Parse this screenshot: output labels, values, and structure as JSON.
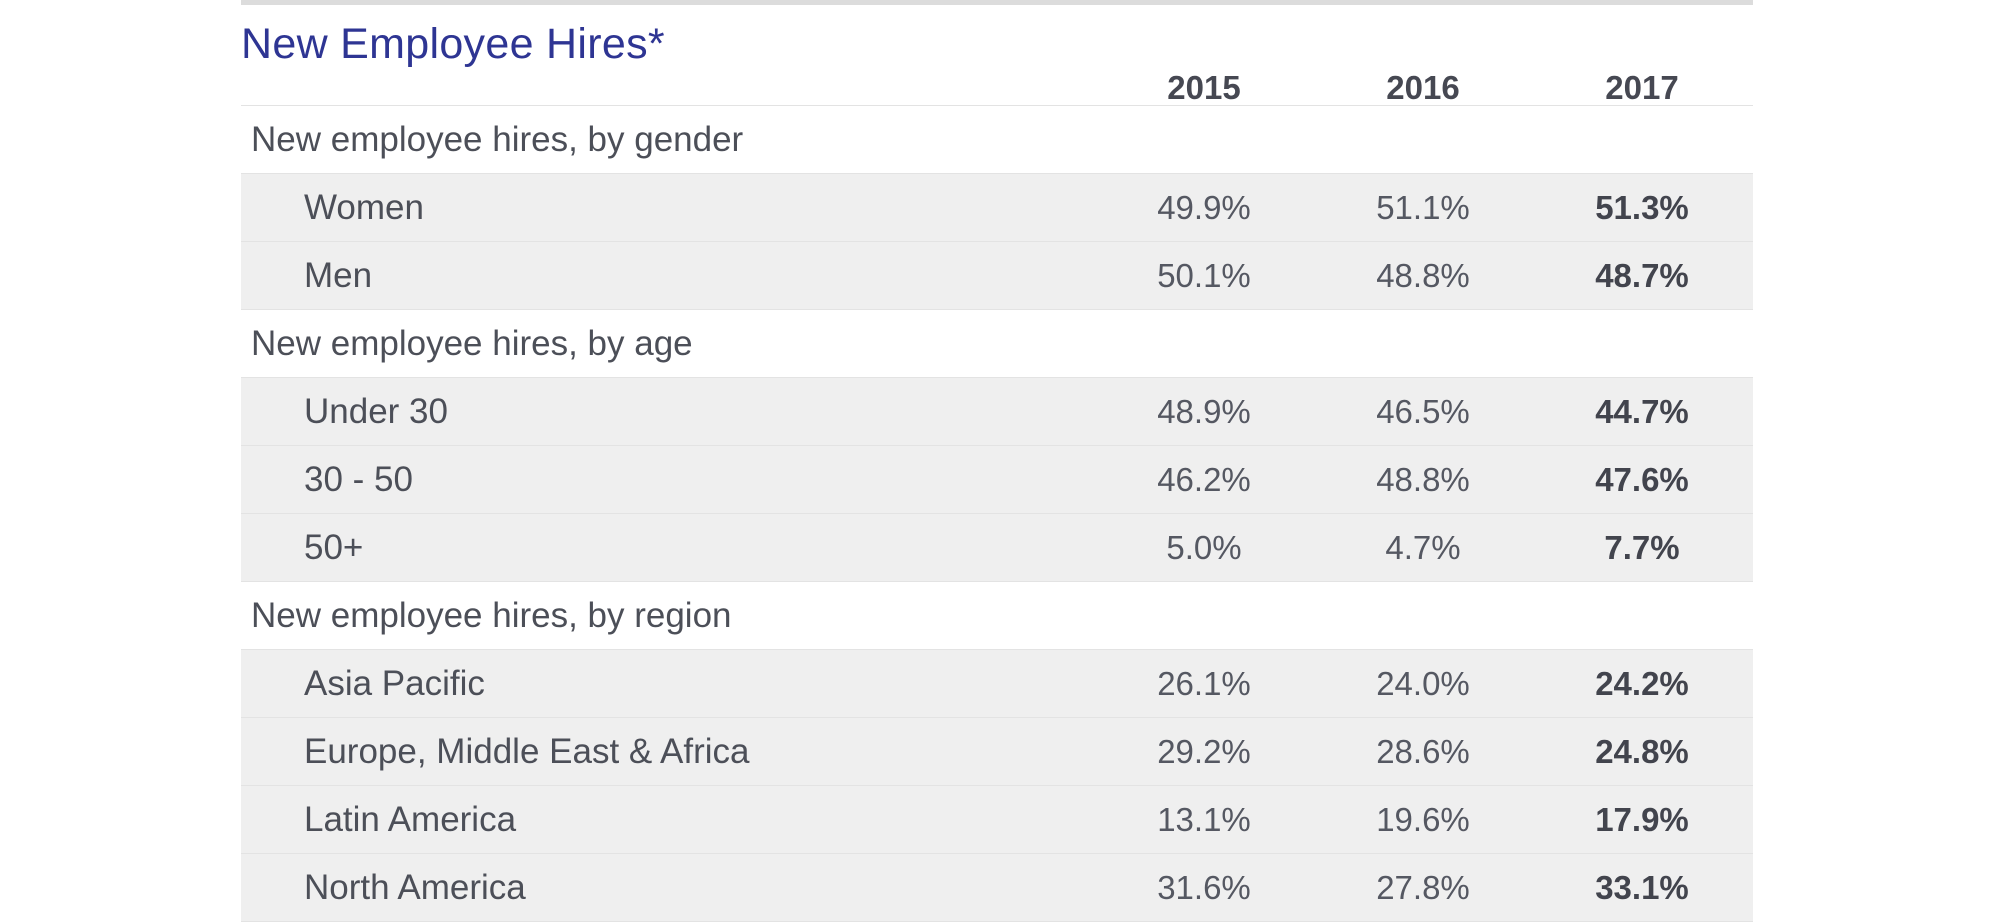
{
  "table": {
    "title": "New Employee Hires*",
    "years": [
      "2015",
      "2016",
      "2017"
    ],
    "sections": [
      {
        "heading": "New employee hires, by gender",
        "rows": [
          {
            "label": "Women",
            "v2015": "49.9%",
            "v2016": "51.1%",
            "v2017": "51.3%"
          },
          {
            "label": "Men",
            "v2015": "50.1%",
            "v2016": "48.8%",
            "v2017": "48.7%"
          }
        ]
      },
      {
        "heading": "New employee hires, by age",
        "rows": [
          {
            "label": "Under 30",
            "v2015": "48.9%",
            "v2016": "46.5%",
            "v2017": "44.7%"
          },
          {
            "label": "30 - 50",
            "v2015": "46.2%",
            "v2016": "48.8%",
            "v2017": "47.6%"
          },
          {
            "label": "50+",
            "v2015": "5.0%",
            "v2016": "4.7%",
            "v2017": "7.7%"
          }
        ]
      },
      {
        "heading": "New employee hires, by region",
        "rows": [
          {
            "label": "Asia Pacific",
            "v2015": "26.1%",
            "v2016": "24.0%",
            "v2017": "24.2%"
          },
          {
            "label": "Europe, Middle East & Africa",
            "v2015": "29.2%",
            "v2016": "28.6%",
            "v2017": "24.8%"
          },
          {
            "label": "Latin America",
            "v2015": "13.1%",
            "v2016": "19.6%",
            "v2017": "17.9%"
          },
          {
            "label": "North America",
            "v2015": "31.6%",
            "v2016": "27.8%",
            "v2017": "33.1%"
          }
        ]
      }
    ]
  },
  "colors": {
    "title": "#2e3593",
    "text": "#4a4d57",
    "row_shade": "#efefef",
    "rule": "#dcdcdc"
  }
}
